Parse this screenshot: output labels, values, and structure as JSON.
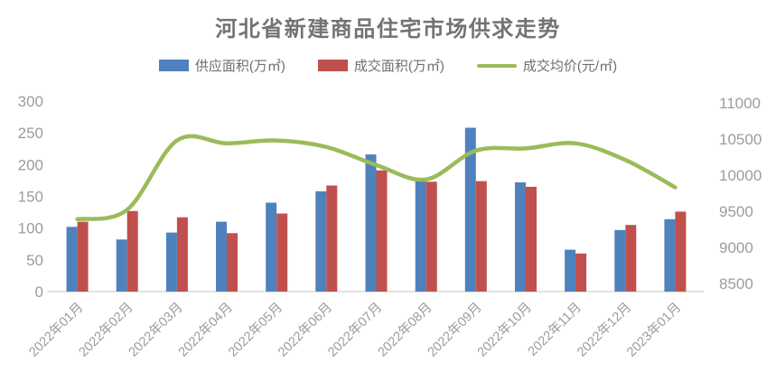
{
  "title": "河北省新建商品住宅市场供求走势",
  "colors": {
    "title_text": "#737373",
    "axis_label": "#9C9C9C",
    "axis_line": "#D9D9D9",
    "background": "#FFFFFF"
  },
  "chart_data": {
    "type": "combo-bar-line",
    "title": "河北省新建商品住宅市场供求走势",
    "categories": [
      "2022年01月",
      "2022年02月",
      "2022年03月",
      "2022年04月",
      "2022年05月",
      "2022年06月",
      "2022年07月",
      "2022年08月",
      "2022年09月",
      "2022年10月",
      "2022年11月",
      "2022年12月",
      "2023年01月"
    ],
    "series": [
      {
        "name": "供应面积(万㎡)",
        "type": "bar",
        "axis": "left",
        "color": "#4F81BD",
        "values": [
          102,
          82,
          93,
          110,
          140,
          158,
          216,
          175,
          258,
          172,
          66,
          97,
          114
        ]
      },
      {
        "name": "成交面积(万㎡)",
        "type": "bar",
        "axis": "left",
        "color": "#C0504D",
        "values": [
          110,
          127,
          117,
          92,
          123,
          167,
          191,
          173,
          174,
          165,
          60,
          105,
          126
        ]
      },
      {
        "name": "成交均价(元/㎡)",
        "type": "line",
        "axis": "right",
        "color": "#9BBB59",
        "values": [
          9390,
          9520,
          10480,
          10440,
          10480,
          10390,
          10140,
          9940,
          10340,
          10370,
          10440,
          10210,
          9830
        ]
      }
    ],
    "left_axis": {
      "min": 0,
      "max": 300,
      "step": 50,
      "ticks": [
        "0",
        "50",
        "100",
        "150",
        "200",
        "250",
        "300"
      ]
    },
    "right_axis": {
      "min": 8500,
      "max": 11000,
      "step": 500,
      "ticks": [
        "8500",
        "9000",
        "9500",
        "10000",
        "10500",
        "11000"
      ]
    },
    "grid": false,
    "legend_position": "top"
  }
}
